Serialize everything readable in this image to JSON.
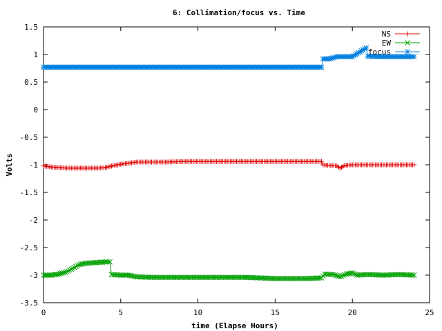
{
  "chart_data": {
    "type": "line",
    "title": "6: Collimation/focus vs. Time",
    "xlabel": "time (Elapse Hours)",
    "ylabel": "Volts",
    "xlim": [
      0,
      25
    ],
    "ylim": [
      -3.5,
      1.5
    ],
    "xticks": [
      "0",
      "5",
      "10",
      "15",
      "20",
      "25"
    ],
    "yticks": [
      "-3.5",
      "-3",
      "-2.5",
      "-2",
      "-1.5",
      "-1",
      "-0.5",
      "0",
      "0.5",
      "1",
      "1.5"
    ],
    "legend_position": "top-right",
    "grid": false,
    "series": [
      {
        "name": "NS",
        "color": "#e00000",
        "marker": "plus",
        "points": [
          [
            0,
            -1.02
          ],
          [
            0.5,
            -1.04
          ],
          [
            1,
            -1.05
          ],
          [
            1.5,
            -1.06
          ],
          [
            2,
            -1.06
          ],
          [
            2.5,
            -1.06
          ],
          [
            3,
            -1.06
          ],
          [
            3.5,
            -1.06
          ],
          [
            4,
            -1.05
          ],
          [
            4.3,
            -1.03
          ],
          [
            4.6,
            -1.01
          ],
          [
            5,
            -0.99
          ],
          [
            5.5,
            -0.97
          ],
          [
            6,
            -0.95
          ],
          [
            7,
            -0.95
          ],
          [
            8,
            -0.95
          ],
          [
            9,
            -0.94
          ],
          [
            10,
            -0.94
          ],
          [
            11,
            -0.94
          ],
          [
            12,
            -0.94
          ],
          [
            13,
            -0.94
          ],
          [
            14,
            -0.94
          ],
          [
            15,
            -0.94
          ],
          [
            16,
            -0.94
          ],
          [
            17,
            -0.94
          ],
          [
            18,
            -0.94
          ],
          [
            18.1,
            -1.0
          ],
          [
            18.5,
            -1.01
          ],
          [
            19,
            -1.02
          ],
          [
            19.2,
            -1.06
          ],
          [
            19.5,
            -1.01
          ],
          [
            20,
            -1.0
          ],
          [
            21,
            -1.0
          ],
          [
            22,
            -1.0
          ],
          [
            23,
            -1.0
          ],
          [
            24,
            -1.0
          ]
        ]
      },
      {
        "name": "EW",
        "color": "#00a000",
        "marker": "cross",
        "points": [
          [
            0,
            -3.0
          ],
          [
            0.5,
            -3.0
          ],
          [
            1,
            -2.98
          ],
          [
            1.5,
            -2.94
          ],
          [
            2,
            -2.86
          ],
          [
            2.3,
            -2.81
          ],
          [
            2.6,
            -2.79
          ],
          [
            3,
            -2.78
          ],
          [
            3.5,
            -2.77
          ],
          [
            4,
            -2.76
          ],
          [
            4.3,
            -2.76
          ],
          [
            4.4,
            -2.99
          ],
          [
            5,
            -3.0
          ],
          [
            5.5,
            -3.0
          ],
          [
            6,
            -3.03
          ],
          [
            7,
            -3.04
          ],
          [
            8,
            -3.04
          ],
          [
            9,
            -3.04
          ],
          [
            10,
            -3.04
          ],
          [
            11,
            -3.04
          ],
          [
            12,
            -3.04
          ],
          [
            13,
            -3.04
          ],
          [
            14,
            -3.05
          ],
          [
            15,
            -3.06
          ],
          [
            16,
            -3.06
          ],
          [
            17,
            -3.06
          ],
          [
            18,
            -3.05
          ],
          [
            18.2,
            -2.98
          ],
          [
            18.8,
            -2.99
          ],
          [
            19.2,
            -3.03
          ],
          [
            19.6,
            -2.98
          ],
          [
            20,
            -2.96
          ],
          [
            20.3,
            -3.0
          ],
          [
            21,
            -2.99
          ],
          [
            22,
            -3.0
          ],
          [
            23,
            -2.99
          ],
          [
            24,
            -3.0
          ]
        ]
      },
      {
        "name": "focus",
        "color": "#0080e0",
        "marker": "star",
        "points": [
          [
            0,
            0.77
          ],
          [
            1,
            0.77
          ],
          [
            2,
            0.77
          ],
          [
            3,
            0.77
          ],
          [
            4,
            0.77
          ],
          [
            5,
            0.77
          ],
          [
            6,
            0.77
          ],
          [
            7,
            0.77
          ],
          [
            8,
            0.77
          ],
          [
            9,
            0.77
          ],
          [
            10,
            0.77
          ],
          [
            11,
            0.77
          ],
          [
            12,
            0.77
          ],
          [
            13,
            0.77
          ],
          [
            14,
            0.77
          ],
          [
            15,
            0.77
          ],
          [
            16,
            0.77
          ],
          [
            17,
            0.77
          ],
          [
            18,
            0.77
          ],
          [
            18.1,
            0.92
          ],
          [
            18.5,
            0.92
          ],
          [
            19,
            0.96
          ],
          [
            20,
            0.96
          ],
          [
            20.9,
            1.12
          ],
          [
            21,
            0.97
          ],
          [
            22,
            0.96
          ],
          [
            23,
            0.96
          ],
          [
            24,
            0.96
          ]
        ]
      }
    ]
  }
}
